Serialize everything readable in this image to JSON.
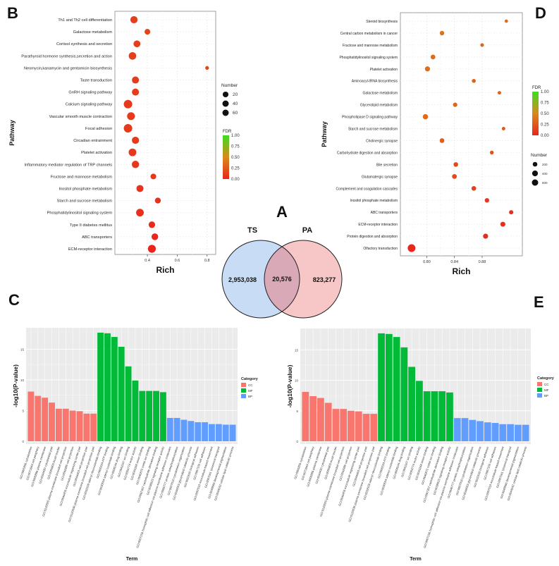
{
  "panels": {
    "A": "A",
    "B": "B",
    "C": "C",
    "D": "D",
    "E": "E"
  },
  "chart_data": [
    {
      "id": "B",
      "type": "scatter",
      "title": "",
      "xlabel": "Rich",
      "ylabel": "Pathway",
      "xlim": [
        0.22,
        0.82
      ],
      "xticks": [
        0.4,
        0.6,
        0.8
      ],
      "xtick_labels": [
        "0.4",
        "0.6",
        "0.8"
      ],
      "grid": true,
      "points": [
        {
          "pathway": "Th1 and Th2 cell differentiation",
          "rich": 0.31,
          "number": 40,
          "fdr": 0.12
        },
        {
          "pathway": "Galactose metabolism",
          "rich": 0.4,
          "number": 20,
          "fdr": 0.15
        },
        {
          "pathway": "Cortisol synthesis and secretion",
          "rich": 0.33,
          "number": 35,
          "fdr": 0.12
        },
        {
          "pathway": "Parathyroid hormone synthesis,secretion and action",
          "rich": 0.3,
          "number": 45,
          "fdr": 0.12
        },
        {
          "pathway": "Neomycin,kanamycin and gentamicin biosynthesis",
          "rich": 0.8,
          "number": 4,
          "fdr": 0.15
        },
        {
          "pathway": "Taste transduction",
          "rich": 0.32,
          "number": 38,
          "fdr": 0.11
        },
        {
          "pathway": "GnRH signaling pathway",
          "rich": 0.32,
          "number": 38,
          "fdr": 0.11
        },
        {
          "pathway": "Calcium signaling pathway",
          "rich": 0.27,
          "number": 62,
          "fdr": 0.1
        },
        {
          "pathway": "Vascular smooth muscle contraction",
          "rich": 0.29,
          "number": 50,
          "fdr": 0.1
        },
        {
          "pathway": "Focal adhesion",
          "rich": 0.27,
          "number": 62,
          "fdr": 0.1
        },
        {
          "pathway": "Circadian entrainment",
          "rich": 0.32,
          "number": 40,
          "fdr": 0.1
        },
        {
          "pathway": "Platelet activation",
          "rich": 0.3,
          "number": 48,
          "fdr": 0.09
        },
        {
          "pathway": "Inflammatory mediator regulation of TRP channels",
          "rich": 0.32,
          "number": 42,
          "fdr": 0.09
        },
        {
          "pathway": "Fructose and mannose metabolism",
          "rich": 0.44,
          "number": 20,
          "fdr": 0.09
        },
        {
          "pathway": "Inositol phosphate metabolism",
          "rich": 0.35,
          "number": 38,
          "fdr": 0.07
        },
        {
          "pathway": "Starch and sucrose metabolism",
          "rich": 0.47,
          "number": 22,
          "fdr": 0.06
        },
        {
          "pathway": "Phosphatidylinositol signaling system",
          "rich": 0.35,
          "number": 48,
          "fdr": 0.05
        },
        {
          "pathway": "Type II diabetes mellitus",
          "rich": 0.43,
          "number": 30,
          "fdr": 0.03
        },
        {
          "pathway": "ABC transporters",
          "rich": 0.45,
          "number": 32,
          "fdr": 0.01
        },
        {
          "pathway": "ECM-receptor interaction",
          "rich": 0.43,
          "number": 52,
          "fdr": 0.0
        }
      ],
      "legend_number": {
        "title": "Number",
        "values": [
          20,
          40,
          60
        ],
        "labels": [
          "20",
          "40",
          "60"
        ]
      },
      "legend_fdr": {
        "title": "FDR",
        "labels": [
          "1.00",
          "0.75",
          "0.50",
          "0.25",
          "0.00"
        ],
        "low_color": "#e8321c",
        "high_color": "#3ddc22"
      }
    },
    {
      "id": "D",
      "type": "scatter",
      "title": "",
      "xlabel": "Rich",
      "ylabel": "Pathway",
      "xlim": [
        0.77,
        0.93
      ],
      "xticks": [
        0.8,
        0.84,
        0.88
      ],
      "xtick_labels": [
        "0.80",
        "0.84",
        "0.88"
      ],
      "grid": true,
      "points": [
        {
          "pathway": "Steroid biosynthesis",
          "rich": 0.915,
          "number": 60,
          "fdr": 0.35
        },
        {
          "pathway": "Central carbon metabolism in cancer",
          "rich": 0.822,
          "number": 180,
          "fdr": 0.38
        },
        {
          "pathway": "Fructose and mannose metabolism",
          "rich": 0.88,
          "number": 80,
          "fdr": 0.32
        },
        {
          "pathway": "Phosphatidylinositol signaling system",
          "rich": 0.809,
          "number": 220,
          "fdr": 0.36
        },
        {
          "pathway": "Platelet activation",
          "rich": 0.801,
          "number": 280,
          "fdr": 0.36
        },
        {
          "pathway": "Aminoacyl-tRNA biosynthesis",
          "rich": 0.868,
          "number": 110,
          "fdr": 0.3
        },
        {
          "pathway": "Galactose metabolism",
          "rich": 0.905,
          "number": 70,
          "fdr": 0.3
        },
        {
          "pathway": "Glycerolipid metabolism",
          "rich": 0.841,
          "number": 160,
          "fdr": 0.32
        },
        {
          "pathway": "Phospholipase D signaling pathway",
          "rich": 0.798,
          "number": 300,
          "fdr": 0.34
        },
        {
          "pathway": "Starch and sucrose metabolism",
          "rich": 0.911,
          "number": 70,
          "fdr": 0.25
        },
        {
          "pathway": "Cholinergic synapse",
          "rich": 0.822,
          "number": 210,
          "fdr": 0.28
        },
        {
          "pathway": "Carbohydrate digestion and absorption",
          "rich": 0.894,
          "number": 100,
          "fdr": 0.22
        },
        {
          "pathway": "Bile secretion",
          "rich": 0.842,
          "number": 200,
          "fdr": 0.18
        },
        {
          "pathway": "Glutamatergic synapse",
          "rich": 0.84,
          "number": 220,
          "fdr": 0.18
        },
        {
          "pathway": "Complement and coagulation cascades",
          "rich": 0.868,
          "number": 200,
          "fdr": 0.13
        },
        {
          "pathway": "Inositol phosphate metabolism",
          "rich": 0.887,
          "number": 180,
          "fdr": 0.08
        },
        {
          "pathway": "ABC transporters",
          "rich": 0.922,
          "number": 150,
          "fdr": 0.05
        },
        {
          "pathway": "ECM-receptor interaction",
          "rich": 0.91,
          "number": 250,
          "fdr": 0.04
        },
        {
          "pathway": "Protein digestion and absorption",
          "rich": 0.885,
          "number": 270,
          "fdr": 0.03
        },
        {
          "pathway": "Olfactory transduction",
          "rich": 0.778,
          "number": 900,
          "fdr": 0.0
        }
      ],
      "legend_number": {
        "title": "Number",
        "values": [
          200,
          400,
          600
        ],
        "labels": [
          "200",
          "400",
          "600"
        ]
      },
      "legend_fdr": {
        "title": "FDR",
        "labels": [
          "1.00",
          "0.75",
          "0.50",
          "0.25",
          "0.00"
        ],
        "low_color": "#e8321c",
        "high_color": "#3ddc22"
      }
    },
    {
      "id": "A",
      "type": "venn",
      "title": "A",
      "sets": [
        {
          "name": "TS",
          "only": "2,953,038",
          "color": "#c9dcf5"
        },
        {
          "name": "PA",
          "only": "823,277",
          "color": "#f7c6c6"
        }
      ],
      "intersection": "20,576",
      "intersection_color": "#d9a9b8"
    },
    {
      "id": "C",
      "type": "bar",
      "xlabel": "Term",
      "ylabel": "-log10(P-value)",
      "ylim": [
        0,
        18.5
      ],
      "yticks": [
        0,
        5,
        10,
        15
      ],
      "ytick_labels": [
        "0",
        "5",
        "10",
        "15"
      ],
      "legend": {
        "title": "Category",
        "entries": [
          {
            "name": "CC",
            "color": "#f8766d"
          },
          {
            "name": "MF",
            "color": "#00ba38"
          },
          {
            "name": "BP",
            "color": "#619cff"
          }
        ]
      },
      "categories": [
        "GO:0005856 cytoskeleton",
        "GO:0071944 cell periphery",
        "GO:0005886 plasma membrane",
        "GO:0044430 cytoskeletal part",
        "GO:0005903 brush border",
        "GO:0120025 plasma membrane bounded cell projection",
        "GO:0042995 cell projection",
        "GO:0044450 microtubule organizing center part",
        "GO:0044463 cell projection part",
        "GO:0120038 plasma membrane bounded cell projection part",
        "GO:0032559 adenyl ribonucleotide binding",
        "GO:0005524 ATP binding",
        "GO:0030554 adenyl nucleotide binding",
        "GO:0008144 drug binding",
        "GO:0043167 ion binding",
        "GO:0003774 motor activity",
        "GO:0043168 anion binding",
        "GO:0046872 metal ion binding",
        "GO:0097367 carbohydrate derivative binding",
        "GO:0038023 signaling receptor activity",
        "GO:0007156 homophilic cell adhesion via plasma membrane adhesion molecules",
        "GO:0006777 protein autophosphorylation",
        "GO:0007010 cytoskeleton organization",
        "GO:0046503 glycerolipid catabolic process",
        "GO:0022610 biological adhesion",
        "GO:0007155 cell adhesion",
        "GO:0007018 microtubule-based movement",
        "GO:0007041 lysosomal transport",
        "GO:0048066 developmental pigmentation",
        "GO:0044242 cellular lipid catabolic process"
      ],
      "series": [
        {
          "name": "CC",
          "values": [
            8.1,
            7.4,
            7.1,
            6.3,
            5.3,
            5.3,
            5.0,
            4.9,
            4.5,
            4.5
          ]
        },
        {
          "name": "MF",
          "values": [
            17.7,
            17.6,
            17.0,
            15.4,
            12.2,
            9.9,
            8.2,
            8.2,
            8.2,
            8.0
          ]
        },
        {
          "name": "BP",
          "values": [
            3.8,
            3.8,
            3.5,
            3.3,
            3.1,
            3.1,
            2.8,
            2.8,
            2.7,
            2.7
          ]
        }
      ]
    },
    {
      "id": "E",
      "type": "bar",
      "xlabel": "Term",
      "ylabel": "-log10(P-value)",
      "ylim": [
        0,
        18.5
      ],
      "yticks": [
        0,
        5,
        10,
        15
      ],
      "ytick_labels": [
        "0",
        "5",
        "10",
        "15"
      ],
      "legend": {
        "title": "Category",
        "entries": [
          {
            "name": "CC",
            "color": "#f8766d"
          },
          {
            "name": "MF",
            "color": "#00ba38"
          },
          {
            "name": "BP",
            "color": "#619cff"
          }
        ]
      },
      "categories": [
        "GO:0005856 cytoskeleton",
        "GO:0071944 cell periphery",
        "GO:0005886 plasma membrane",
        "GO:0044430 cytoskeletal part",
        "GO:0005903 brush border",
        "GO:0120025 plasma membrane bounded cell projection",
        "GO:0042995 cell projection",
        "GO:0044450 microtubule organizing center part",
        "GO:0044463 cell projection part",
        "GO:0120038 plasma membrane bounded cell projection part",
        "GO:0032559 adenyl ribonucleotide binding",
        "GO:0005524 ATP binding",
        "GO:0030554 adenyl nucleotide binding",
        "GO:0008144 drug binding",
        "GO:0043167 ion binding",
        "GO:0003774 motor activity",
        "GO:0043168 anion binding",
        "GO:0046872 metal ion binding",
        "GO:0097367 carbohydrate derivative binding",
        "GO:0038023 signaling receptor activity",
        "GO:0007156 homophilic cell adhesion via plasma membrane adhesion molecules",
        "GO:0046777 protein autophosphorylation",
        "GO:0007010 cytoskeleton organization",
        "GO:0046503 glycerolipid catabolic process",
        "GO:0022610 biological adhesion",
        "GO:0007155 cell adhesion",
        "GO:0007018 microtubule-based movement",
        "GO:0007041 lysosomal transport",
        "GO:0048066 developmental pigmentation",
        "GO:0044242 cellular lipid catabolic process"
      ],
      "series": [
        {
          "name": "CC",
          "values": [
            8.1,
            7.4,
            7.1,
            6.3,
            5.3,
            5.3,
            5.0,
            4.9,
            4.5,
            4.5
          ]
        },
        {
          "name": "MF",
          "values": [
            17.7,
            17.6,
            17.1,
            15.4,
            12.2,
            9.9,
            8.2,
            8.2,
            8.2,
            8.0
          ]
        },
        {
          "name": "BP",
          "values": [
            3.8,
            3.8,
            3.5,
            3.3,
            3.1,
            3.0,
            2.8,
            2.8,
            2.7,
            2.7
          ]
        }
      ]
    }
  ]
}
